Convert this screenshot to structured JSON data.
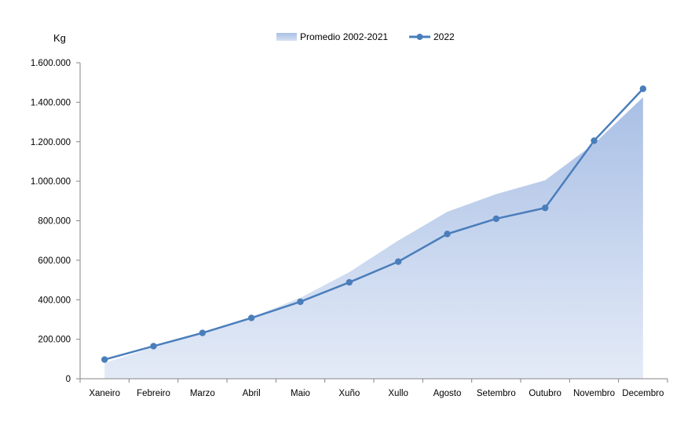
{
  "chart_data": {
    "type": "area",
    "ylabel": "Kg",
    "ylim": [
      0,
      1600000
    ],
    "yticks": [
      {
        "value": 0,
        "label": "0"
      },
      {
        "value": 200000,
        "label": "200.000"
      },
      {
        "value": 400000,
        "label": "400.000"
      },
      {
        "value": 600000,
        "label": "600.000"
      },
      {
        "value": 800000,
        "label": "800.000"
      },
      {
        "value": 1000000,
        "label": "1.000.000"
      },
      {
        "value": 1200000,
        "label": "1.200.000"
      },
      {
        "value": 1400000,
        "label": "1.400.000"
      },
      {
        "value": 1600000,
        "label": "1.600.000"
      }
    ],
    "categories": [
      "Xaneiro",
      "Febreiro",
      "Marzo",
      "Abril",
      "Maio",
      "Xuño",
      "Xullo",
      "Agosto",
      "Setembro",
      "Outubro",
      "Novembro",
      "Decembro"
    ],
    "series": [
      {
        "name": "Promedio 2002-2021",
        "kind": "area",
        "color": "#b4c7e7",
        "values": [
          80000,
          160000,
          230000,
          310000,
          410000,
          540000,
          700000,
          845000,
          935000,
          1005000,
          1190000,
          1425000
        ]
      },
      {
        "name": "2022",
        "kind": "line",
        "color": "#4a7ebb",
        "values": [
          97000,
          165000,
          232000,
          308000,
          390000,
          488000,
          593000,
          733000,
          810000,
          865000,
          1205000,
          1468000
        ]
      }
    ],
    "legend": "top-center",
    "grid": false
  }
}
